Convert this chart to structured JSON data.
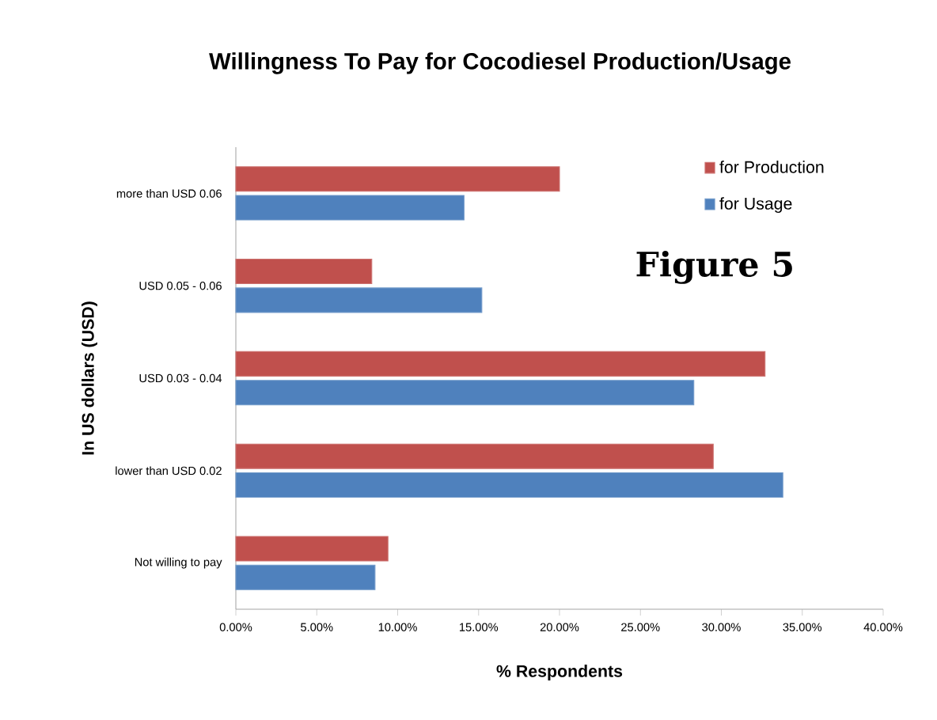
{
  "chart_data": {
    "type": "bar",
    "orientation": "horizontal",
    "title": "Willingness To Pay for Cocodiesel Production/Usage",
    "xlabel": "% Respondents",
    "ylabel": "In US dollars (USD)",
    "categories": [
      "more than USD 0.06",
      "USD 0.05 - 0.06",
      "USD 0.03 - 0.04",
      "lower than USD 0.02",
      "Not willing  to pay"
    ],
    "series": [
      {
        "name": "for Production",
        "color": "#c0504d",
        "values": [
          20.0,
          8.4,
          32.7,
          29.5,
          9.4
        ]
      },
      {
        "name": "for Usage",
        "color": "#4f81bd",
        "values": [
          14.1,
          15.2,
          28.3,
          33.8,
          8.6
        ]
      }
    ],
    "xlim": [
      0,
      40
    ],
    "xticks": [
      {
        "value": 0,
        "label": "0.00%"
      },
      {
        "value": 5,
        "label": "5.00%"
      },
      {
        "value": 10,
        "label": "10.00%"
      },
      {
        "value": 15,
        "label": "15.00%"
      },
      {
        "value": 20,
        "label": "20.00%"
      },
      {
        "value": 25,
        "label": "25.00%"
      },
      {
        "value": 30,
        "label": "30.00%"
      },
      {
        "value": 35,
        "label": "35.00%"
      },
      {
        "value": 40,
        "label": "40.00%"
      }
    ],
    "legend": "top right",
    "grid": false,
    "annotations": [
      "Figure 5"
    ]
  }
}
